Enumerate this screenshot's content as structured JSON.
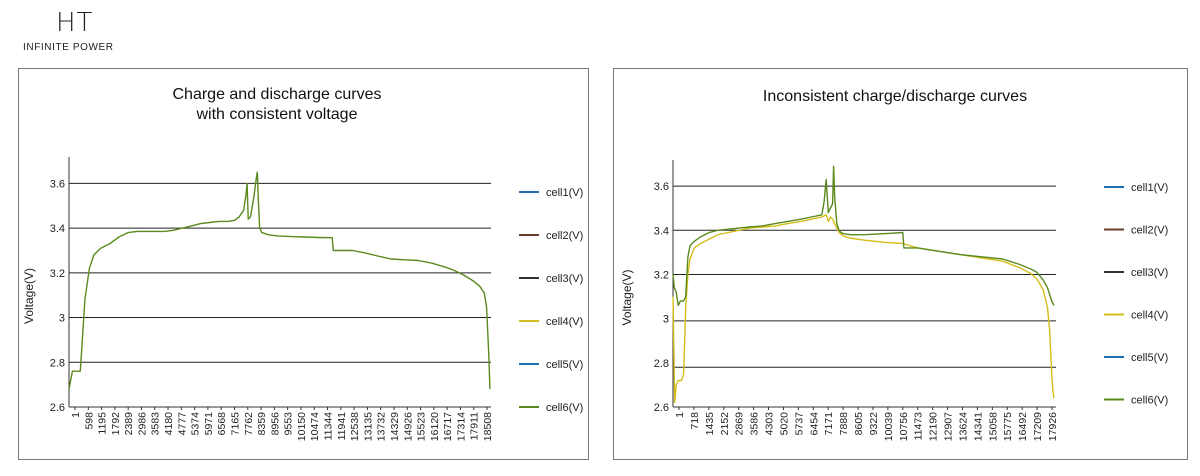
{
  "brand": {
    "mark": "HT",
    "tagline": "INFINITE POWER"
  },
  "colors": {
    "cell1": "#1f6fb5",
    "cell2": "#6b3b2b",
    "cell3": "#333333",
    "cell4": "#d4bd1a",
    "cell5": "#1f6fb5",
    "cell6": "#5a8a1e"
  },
  "chart_data": [
    {
      "type": "line",
      "title": "Charge and discharge curves with consistent voltage",
      "title_lines": [
        "Charge and discharge curves",
        "with consistent voltage"
      ],
      "ylabel": "Voltage(V)",
      "xlabel": "",
      "ylim": [
        2.6,
        3.7
      ],
      "xlim": [
        1,
        18600
      ],
      "yticks": [
        2.6,
        2.8,
        3,
        3.2,
        3.4,
        3.6
      ],
      "ytick_labels": [
        "2.6",
        "2.8",
        "3",
        "3.2",
        "3.4",
        "3.6"
      ],
      "gridlines": [
        2.8,
        3,
        3.2,
        3.4,
        3.6
      ],
      "xtick_labels": [
        "1",
        "598",
        "1195",
        "1792",
        "2389",
        "2986",
        "3583",
        "4180",
        "4777",
        "5374",
        "5971",
        "6568",
        "7165",
        "7762",
        "8359",
        "8956",
        "9553",
        "10150",
        "10474",
        "11344",
        "11941",
        "12538",
        "13135",
        "13732",
        "14329",
        "14926",
        "15523",
        "16120",
        "16717",
        "17314",
        "17911",
        "18508"
      ],
      "legend_position": "right",
      "series": [
        {
          "name": "cell1(V)",
          "color": "#1f6fb5",
          "x": [],
          "y": []
        },
        {
          "name": "cell2(V)",
          "color": "#6b3b2b",
          "x": [],
          "y": []
        },
        {
          "name": "cell3(V)",
          "color": "#333333",
          "x": [],
          "y": []
        },
        {
          "name": "cell4(V)",
          "color": "#d4bd1a",
          "x": [],
          "y": []
        },
        {
          "name": "cell5(V)",
          "color": "#1f6fb5",
          "x": [],
          "y": []
        },
        {
          "name": "cell6(V)",
          "color": "#5a8a1e",
          "x": [
            1,
            150,
            300,
            500,
            700,
            900,
            1100,
            1400,
            1800,
            2200,
            2600,
            3000,
            3400,
            3800,
            4200,
            4600,
            5000,
            5400,
            5800,
            6200,
            6600,
            7000,
            7300,
            7500,
            7700,
            7800,
            7850,
            7900,
            8000,
            8150,
            8250,
            8300,
            8359,
            8400,
            8500,
            8800,
            9200,
            9800,
            10400,
            11000,
            11600,
            11650,
            12000,
            12500,
            13000,
            13600,
            14200,
            14800,
            15400,
            16000,
            16600,
            17000,
            17400,
            17800,
            18100,
            18300,
            18400,
            18450,
            18508,
            18550
          ],
          "y": [
            2.68,
            2.76,
            2.76,
            2.76,
            3.08,
            3.22,
            3.28,
            3.31,
            3.33,
            3.36,
            3.38,
            3.385,
            3.385,
            3.385,
            3.385,
            3.39,
            3.4,
            3.41,
            3.42,
            3.425,
            3.43,
            3.43,
            3.435,
            3.45,
            3.48,
            3.55,
            3.6,
            3.44,
            3.45,
            3.54,
            3.62,
            3.65,
            3.5,
            3.4,
            3.38,
            3.37,
            3.365,
            3.362,
            3.36,
            3.358,
            3.357,
            3.3,
            3.3,
            3.3,
            3.29,
            3.275,
            3.262,
            3.258,
            3.255,
            3.243,
            3.225,
            3.21,
            3.19,
            3.165,
            3.14,
            3.11,
            3.05,
            2.95,
            2.82,
            2.68
          ]
        }
      ]
    },
    {
      "type": "line",
      "title": "Inconsistent charge/discharge curves",
      "title_lines": [
        "Inconsistent charge/discharge curves"
      ],
      "ylabel": "Voltage(V)",
      "xlabel": "",
      "ylim": [
        2.6,
        3.7
      ],
      "xlim": [
        1,
        18000
      ],
      "yticks": [
        2.6,
        2.8,
        3,
        3.2,
        3.4,
        3.6
      ],
      "ytick_labels": [
        "2.6",
        "2.8",
        "3",
        "3.2",
        "3.4",
        "3.6"
      ],
      "gridlines": [
        2.78,
        2.99,
        3.2,
        3.4,
        3.6
      ],
      "xtick_labels": [
        "1",
        "718",
        "1435",
        "2152",
        "2869",
        "3586",
        "4303",
        "5020",
        "5737",
        "6454",
        "7171",
        "7888",
        "8605",
        "9322",
        "10039",
        "10756",
        "11473",
        "12190",
        "12907",
        "13624",
        "14341",
        "15058",
        "15775",
        "16492",
        "17209",
        "17926"
      ],
      "legend_position": "right",
      "series": [
        {
          "name": "cell1(V)",
          "color": "#1f6fb5",
          "x": [],
          "y": []
        },
        {
          "name": "cell2(V)",
          "color": "#6b3b2b",
          "x": [],
          "y": []
        },
        {
          "name": "cell3(V)",
          "color": "#333333",
          "x": [],
          "y": []
        },
        {
          "name": "cell4(V)",
          "color": "#d4bd1a",
          "x": [
            1,
            80,
            150,
            250,
            400,
            500,
            600,
            700,
            800,
            1000,
            1300,
            1700,
            2100,
            2600,
            3100,
            3600,
            4200,
            4800,
            5400,
            6000,
            6500,
            7000,
            7200,
            7300,
            7400,
            7500,
            7600,
            7700,
            7800,
            8000,
            8300,
            9000,
            10000,
            10800,
            11500,
            12500,
            13500,
            14500,
            15500,
            16300,
            16800,
            17100,
            17400,
            17600,
            17700,
            17750,
            17800,
            17850,
            17900
          ],
          "y": [
            3.1,
            2.62,
            2.7,
            2.72,
            2.72,
            2.75,
            3.05,
            3.2,
            3.27,
            3.32,
            3.34,
            3.36,
            3.38,
            3.39,
            3.4,
            3.41,
            3.415,
            3.42,
            3.43,
            3.44,
            3.45,
            3.46,
            3.47,
            3.44,
            3.46,
            3.45,
            3.43,
            3.41,
            3.39,
            3.375,
            3.365,
            3.355,
            3.345,
            3.34,
            3.32,
            3.305,
            3.29,
            3.275,
            3.26,
            3.23,
            3.205,
            3.18,
            3.13,
            3.05,
            2.95,
            2.85,
            2.75,
            2.68,
            2.64
          ]
        },
        {
          "name": "cell5(V)",
          "color": "#1f6fb5",
          "x": [],
          "y": []
        },
        {
          "name": "cell6(V)",
          "color": "#5a8a1e",
          "x": [
            1,
            60,
            150,
            250,
            350,
            500,
            600,
            700,
            800,
            1000,
            1300,
            1700,
            2100,
            2600,
            3100,
            3600,
            4200,
            4800,
            5400,
            6000,
            6500,
            7000,
            7100,
            7200,
            7300,
            7400,
            7500,
            7550,
            7600,
            7700,
            7800,
            7900,
            8000,
            8300,
            9000,
            10000,
            10800,
            10850,
            11500,
            12500,
            13500,
            14500,
            15500,
            16300,
            16800,
            17100,
            17400,
            17600,
            17700,
            17800,
            17900
          ],
          "y": [
            3.2,
            3.14,
            3.12,
            3.06,
            3.08,
            3.08,
            3.1,
            3.28,
            3.33,
            3.35,
            3.37,
            3.39,
            3.4,
            3.405,
            3.41,
            3.415,
            3.42,
            3.43,
            3.44,
            3.45,
            3.46,
            3.47,
            3.53,
            3.63,
            3.48,
            3.5,
            3.52,
            3.69,
            3.55,
            3.43,
            3.4,
            3.39,
            3.385,
            3.38,
            3.38,
            3.385,
            3.39,
            3.32,
            3.32,
            3.305,
            3.29,
            3.28,
            3.27,
            3.245,
            3.225,
            3.21,
            3.175,
            3.14,
            3.11,
            3.08,
            3.06
          ]
        }
      ]
    }
  ]
}
